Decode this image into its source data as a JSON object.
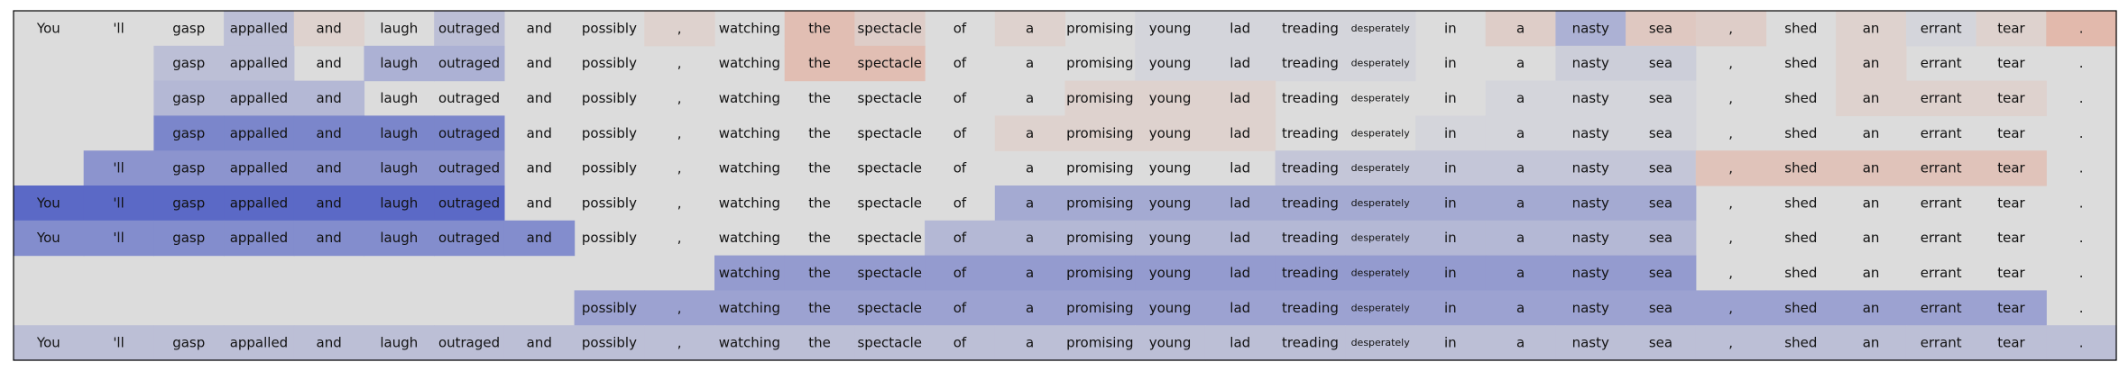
{
  "chart_data": {
    "type": "heatmap",
    "title": "",
    "xlabel": "",
    "ylabel": "",
    "background_color": "#dcdcdc",
    "tokens": [
      "You",
      "'ll",
      "gasp",
      "appalled",
      "and",
      "laugh",
      "outraged",
      "and",
      "possibly",
      ",",
      "watching",
      "the",
      "spectacle",
      "of",
      "a",
      "promising",
      "young",
      "lad",
      "treading",
      "desperately",
      "in",
      "a",
      "nasty",
      "sea",
      ",",
      "shed",
      "an",
      "errant",
      "tear",
      "."
    ],
    "color_scale": "coolwarm: negative = warm orange, positive = cool blue, 0 = neutral gray",
    "rows": [
      [
        0,
        0,
        0,
        0.2,
        -0.1,
        0,
        0.2,
        0,
        0,
        -0.1,
        0,
        -0.3,
        -0.15,
        0,
        -0.1,
        0,
        0.05,
        0.05,
        0.05,
        0.05,
        0,
        -0.15,
        0.3,
        -0.2,
        -0.15,
        0,
        -0.1,
        0.05,
        -0.1,
        -0.35
      ],
      [
        null,
        null,
        0.2,
        0.2,
        0,
        0.3,
        0.3,
        0,
        0,
        0,
        0,
        -0.3,
        -0.3,
        0,
        0,
        0,
        0.05,
        0.05,
        0.05,
        0.05,
        0,
        0,
        0.1,
        0.1,
        0,
        0,
        -0.1,
        0,
        0,
        0
      ],
      [
        null,
        null,
        0.25,
        0.25,
        0.25,
        0,
        0,
        0,
        0,
        0,
        0,
        0,
        0,
        0,
        0,
        -0.1,
        -0.1,
        -0.1,
        0,
        0,
        0,
        0.05,
        0.05,
        0.05,
        0,
        0,
        -0.1,
        -0.1,
        -0.1,
        0
      ],
      [
        null,
        null,
        0.6,
        0.6,
        0.6,
        0.6,
        0.6,
        0,
        0,
        0,
        0,
        0,
        0,
        0,
        -0.1,
        -0.1,
        -0.1,
        -0.1,
        0,
        0,
        0.05,
        0.05,
        0.05,
        0.05,
        0,
        0,
        0,
        0,
        0,
        0
      ],
      [
        null,
        0.5,
        0.5,
        0.5,
        0.5,
        0.5,
        0.5,
        0,
        0,
        0,
        0,
        0,
        0,
        0,
        0,
        0,
        0,
        0,
        0.15,
        0.15,
        0.15,
        0.15,
        0.15,
        0.15,
        -0.25,
        -0.25,
        -0.25,
        -0.25,
        -0.25,
        0
      ],
      [
        0.8,
        0.8,
        0.8,
        0.8,
        0.8,
        0.8,
        0.8,
        0,
        0,
        0,
        0,
        0,
        0,
        0,
        0.35,
        0.35,
        0.35,
        0.35,
        0.35,
        0.35,
        0.35,
        0.35,
        0.35,
        0.35,
        0,
        0,
        0,
        0,
        0,
        0
      ],
      [
        0.55,
        0.55,
        0.55,
        0.55,
        0.55,
        0.55,
        0.55,
        0.55,
        0,
        0,
        0,
        0,
        0,
        0.25,
        0.25,
        0.25,
        0.25,
        0.25,
        0.25,
        0.25,
        0.25,
        0.25,
        0.25,
        0.25,
        0,
        0,
        0,
        0,
        0,
        0
      ],
      [
        null,
        null,
        null,
        null,
        null,
        null,
        null,
        null,
        null,
        null,
        0.45,
        0.45,
        0.45,
        0.45,
        0.45,
        0.45,
        0.45,
        0.45,
        0.45,
        0.45,
        0.45,
        0.45,
        0.45,
        0.45,
        0,
        0,
        0,
        0,
        0,
        0
      ],
      [
        null,
        null,
        null,
        null,
        null,
        null,
        null,
        null,
        0.4,
        0.4,
        0.4,
        0.4,
        0.4,
        0.4,
        0.4,
        0.4,
        0.4,
        0.4,
        0.4,
        0.4,
        0.4,
        0.4,
        0.4,
        0.4,
        0.4,
        0.4,
        0.4,
        0.4,
        0.4,
        0
      ],
      [
        0.2,
        0.2,
        0.2,
        0.2,
        0.2,
        0.2,
        0.2,
        0.2,
        0.2,
        0.2,
        0.2,
        0.2,
        0.2,
        0.2,
        0.2,
        0.2,
        0.2,
        0.2,
        0.2,
        0.2,
        0.2,
        0.2,
        0.2,
        0.2,
        0.2,
        0.2,
        0.2,
        0.2,
        0.2,
        0.2
      ]
    ],
    "small_font_tokens": [
      "desperately"
    ]
  }
}
